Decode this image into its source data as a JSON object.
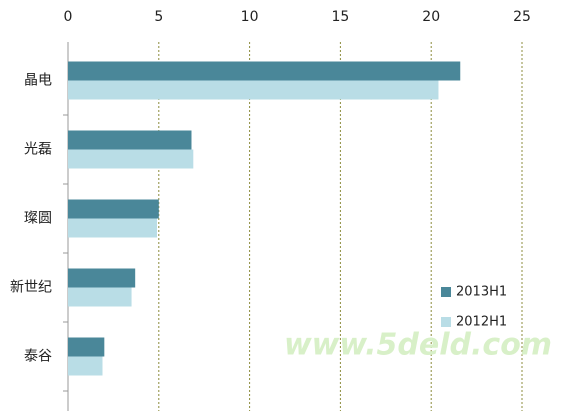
{
  "chart_data": {
    "type": "hbar",
    "categories": [
      "晶电",
      "光磊",
      "璨圆",
      "新世纪",
      "泰谷"
    ],
    "series": [
      {
        "name": "2013H1",
        "color": "#4a8799",
        "values": [
          21.6,
          6.8,
          5.0,
          3.7,
          2.0
        ]
      },
      {
        "name": "2012H1",
        "color": "#b9dde6",
        "values": [
          20.4,
          6.9,
          4.9,
          3.5,
          1.9
        ]
      }
    ],
    "xlim": [
      0,
      25
    ],
    "xticks": [
      0,
      5,
      10,
      15,
      20,
      25
    ],
    "grid": true,
    "legend": "bottom-right",
    "watermark": "www.5deld.com"
  }
}
